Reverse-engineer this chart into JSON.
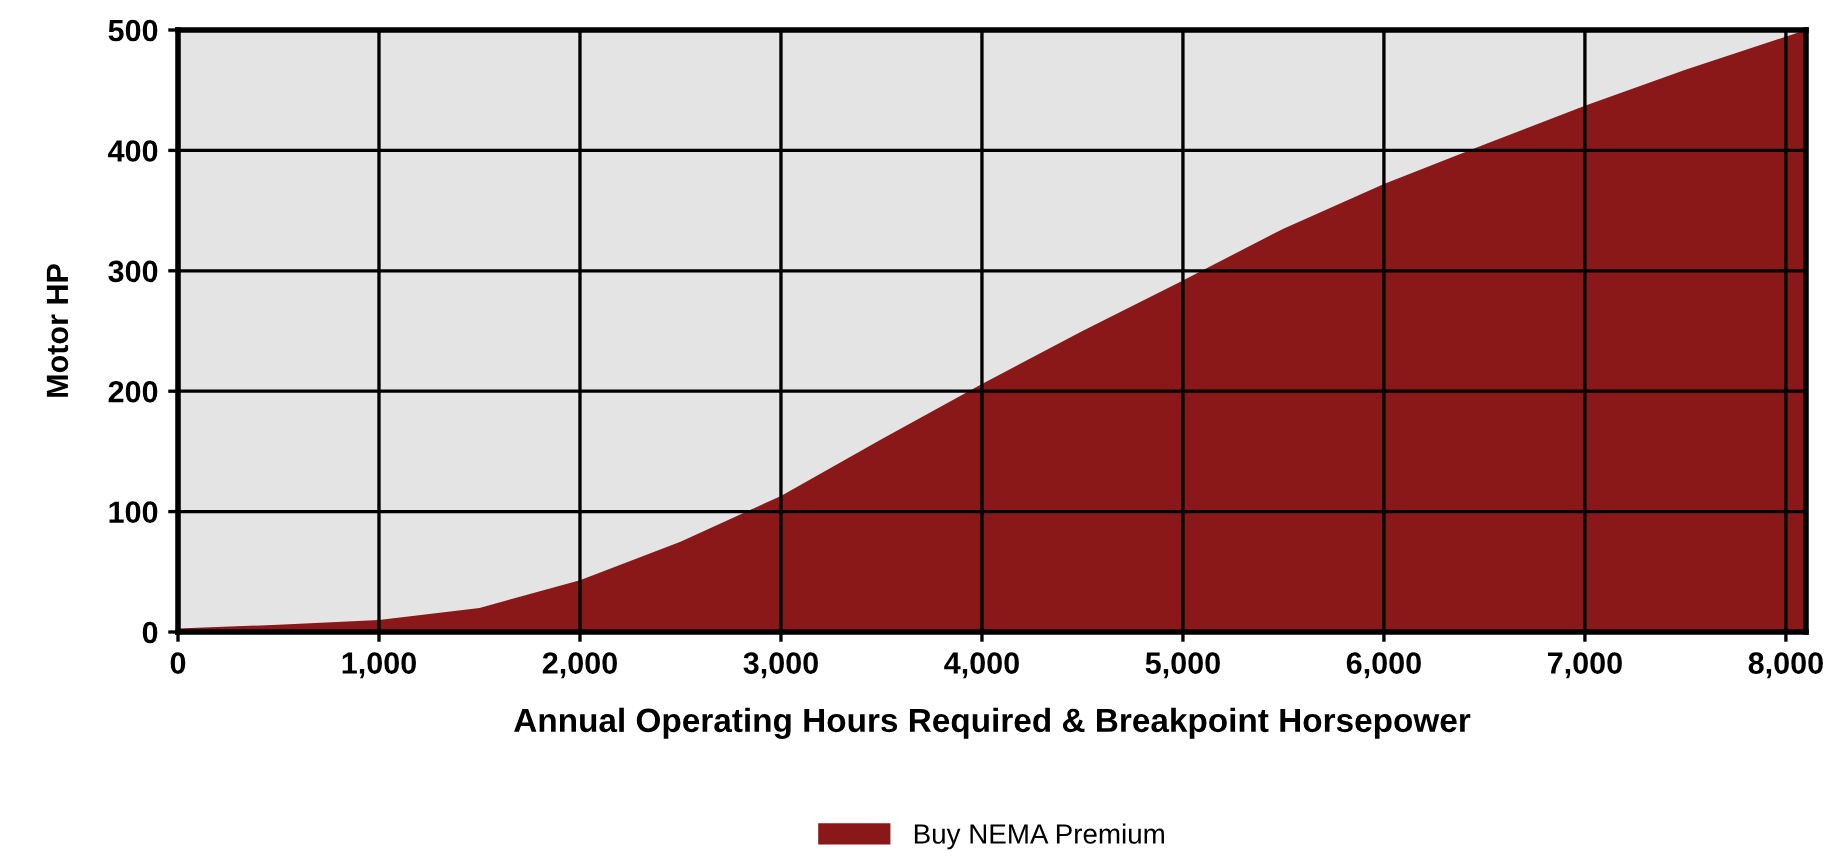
{
  "chart_data": {
    "type": "area",
    "xlabel": "Annual Operating Hours Required & Breakpoint Horsepower",
    "ylabel": "Motor HP",
    "x": [
      0,
      500,
      1000,
      1500,
      2000,
      2500,
      3000,
      3500,
      4000,
      4500,
      5000,
      5500,
      6000,
      6500,
      7000,
      7500,
      8100
    ],
    "series": [
      {
        "name": "Buy NEMA Premium",
        "color": "#8b1818",
        "values": [
          3,
          6,
          10,
          20,
          43,
          75,
          113,
          160,
          206,
          250,
          292,
          335,
          372,
          405,
          437,
          467,
          500
        ]
      }
    ],
    "xlim": [
      0,
      8100
    ],
    "ylim": [
      0,
      500
    ],
    "xticks": [
      {
        "value": 0,
        "label": "0"
      },
      {
        "value": 1000,
        "label": "1,000"
      },
      {
        "value": 2000,
        "label": "2,000"
      },
      {
        "value": 3000,
        "label": "3,000"
      },
      {
        "value": 4000,
        "label": "4,000"
      },
      {
        "value": 5000,
        "label": "5,000"
      },
      {
        "value": 6000,
        "label": "6,000"
      },
      {
        "value": 7000,
        "label": "7,000"
      },
      {
        "value": 8000,
        "label": "8,000"
      }
    ],
    "yticks": [
      0,
      100,
      200,
      300,
      400,
      500
    ],
    "grid": true,
    "legend": "bottom"
  }
}
